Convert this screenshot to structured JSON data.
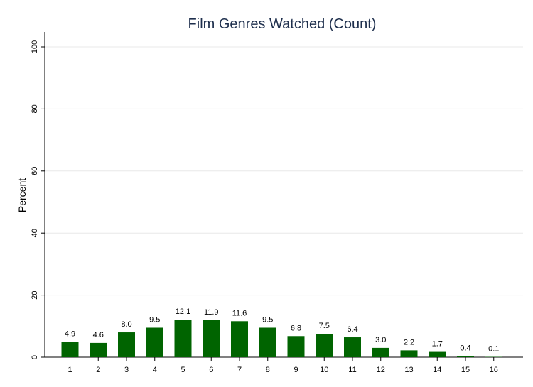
{
  "chart_data": {
    "type": "bar",
    "title": "Film Genres Watched (Count)",
    "xlabel": "",
    "ylabel": "Percent",
    "categories": [
      "1",
      "2",
      "3",
      "4",
      "5",
      "6",
      "7",
      "8",
      "9",
      "10",
      "11",
      "12",
      "13",
      "14",
      "15",
      "16"
    ],
    "values": [
      4.9,
      4.6,
      8.0,
      9.5,
      12.1,
      11.9,
      11.6,
      9.5,
      6.8,
      7.5,
      6.4,
      3.0,
      2.2,
      1.7,
      0.4,
      0.1
    ],
    "value_labels": [
      "4.9",
      "4.6",
      "8.0",
      "9.5",
      "12.1",
      "11.9",
      "11.6",
      "9.5",
      "6.8",
      "7.5",
      "6.4",
      "3.0",
      "2.2",
      "1.7",
      "0.4",
      "0.1"
    ],
    "yticks": [
      0,
      20,
      40,
      60,
      80,
      100
    ],
    "ylim": [
      0,
      100
    ],
    "grid": true,
    "bar_color": "#006400"
  }
}
